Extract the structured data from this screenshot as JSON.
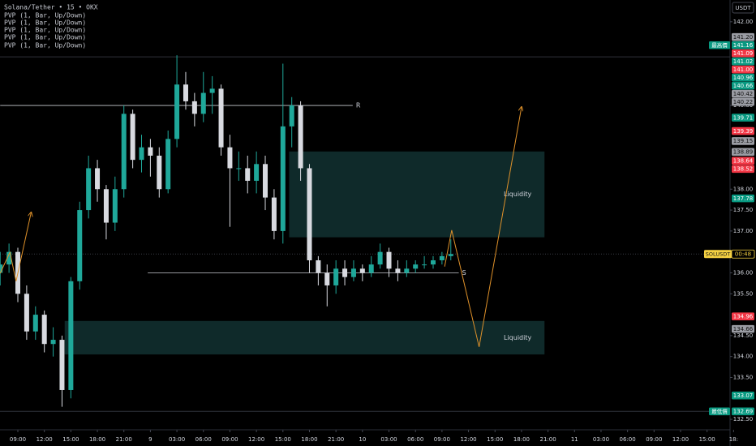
{
  "chart_data": {
    "type": "candlestick",
    "title": "Solana/Tether • 15 • OKX",
    "indicators": [
      "PVP (1, Bar, Up/Down)",
      "PVP (1, Bar, Up/Down)",
      "PVP (1, Bar, Up/Down)",
      "PVP (1, Bar, Up/Down)",
      "PVP (1, Bar, Up/Down)"
    ],
    "currency": "USDT",
    "up_color": "#1fa89a",
    "down_color": "#d8dae0",
    "x": [
      -2,
      -1,
      0,
      1,
      2,
      3,
      4,
      5,
      6,
      7,
      8,
      9,
      10,
      11,
      12,
      13,
      14,
      15,
      16,
      17,
      18,
      19,
      20,
      21,
      22,
      23,
      24,
      25,
      26,
      27,
      28,
      29,
      30,
      31,
      32,
      33,
      34,
      35,
      36,
      37,
      38,
      39,
      40,
      41,
      42,
      43,
      44,
      45,
      46,
      47,
      48,
      49
    ],
    "open": [
      136.0,
      136.2,
      136.5,
      135.5,
      134.6,
      135.0,
      134.3,
      134.4,
      133.2,
      135.8,
      137.5,
      138.5,
      138.0,
      137.2,
      138.0,
      139.8,
      138.7,
      139.0,
      138.8,
      138.0,
      139.2,
      140.5,
      140.1,
      139.8,
      140.3,
      140.4,
      139.0,
      138.5,
      138.5,
      138.2,
      138.6,
      137.8,
      137.0,
      139.5,
      140.0,
      138.5,
      136.3,
      136.0,
      135.7,
      136.1,
      135.9,
      136.1,
      136.0,
      136.2,
      136.5,
      136.1,
      136.0,
      136.1,
      136.2,
      136.2,
      136.3,
      136.4
    ],
    "high": [
      136.5,
      136.7,
      136.6,
      135.7,
      135.2,
      135.1,
      134.7,
      134.5,
      135.9,
      137.7,
      138.8,
      138.7,
      138.1,
      138.3,
      140.0,
      139.9,
      139.3,
      139.2,
      139.0,
      139.4,
      141.2,
      140.8,
      140.3,
      140.8,
      140.7,
      140.5,
      139.3,
      138.9,
      138.8,
      138.9,
      138.8,
      138.0,
      141.0,
      140.2,
      140.1,
      138.6,
      136.4,
      136.2,
      136.3,
      136.3,
      136.3,
      136.2,
      136.4,
      136.7,
      136.6,
      136.3,
      136.3,
      136.3,
      136.4,
      136.4,
      136.5,
      136.8
    ],
    "low": [
      135.7,
      136.0,
      135.3,
      134.4,
      134.4,
      134.1,
      134.0,
      132.8,
      133.0,
      135.6,
      137.3,
      137.7,
      136.8,
      137.0,
      137.8,
      138.5,
      138.4,
      138.3,
      137.8,
      137.9,
      139.0,
      139.9,
      139.5,
      139.6,
      139.8,
      138.8,
      137.1,
      138.2,
      137.9,
      137.9,
      137.5,
      136.8,
      136.7,
      139.0,
      138.2,
      136.0,
      135.7,
      135.2,
      135.5,
      135.7,
      135.8,
      135.8,
      135.9,
      136.1,
      135.9,
      135.8,
      135.9,
      136.0,
      136.1,
      136.1,
      136.2,
      136.3
    ],
    "close": [
      136.2,
      136.5,
      135.5,
      134.6,
      135.0,
      134.3,
      134.4,
      133.2,
      135.8,
      137.5,
      138.5,
      138.0,
      137.2,
      138.0,
      139.8,
      138.7,
      139.0,
      138.8,
      138.0,
      139.2,
      140.5,
      140.1,
      139.8,
      140.3,
      140.4,
      139.0,
      138.5,
      138.5,
      138.2,
      138.6,
      137.8,
      137.0,
      139.5,
      140.0,
      138.5,
      136.3,
      136.0,
      135.7,
      136.1,
      135.9,
      136.1,
      136.0,
      136.2,
      136.5,
      136.1,
      136.0,
      136.1,
      136.2,
      136.2,
      136.3,
      136.4,
      136.45
    ],
    "xlim": [
      -2.02,
      80.6
    ],
    "ylim": [
      132.25,
      142.52
    ],
    "xticks": [
      {
        "value": 0,
        "label": "09:00"
      },
      {
        "value": 3,
        "label": "12:00"
      },
      {
        "value": 6,
        "label": "15:00"
      },
      {
        "value": 9,
        "label": "18:00"
      },
      {
        "value": 12,
        "label": "21:00"
      },
      {
        "value": 15,
        "label": "9"
      },
      {
        "value": 18,
        "label": "03:00"
      },
      {
        "value": 21,
        "label": "06:00"
      },
      {
        "value": 24,
        "label": "09:00"
      },
      {
        "value": 27,
        "label": "12:00"
      },
      {
        "value": 30,
        "label": "15:00"
      },
      {
        "value": 33,
        "label": "18:00"
      },
      {
        "value": 36,
        "label": "21:00"
      },
      {
        "value": 39,
        "label": "10"
      },
      {
        "value": 42,
        "label": "03:00"
      },
      {
        "value": 45,
        "label": "06:00"
      },
      {
        "value": 48,
        "label": "09:00"
      },
      {
        "value": 51,
        "label": "12:00"
      },
      {
        "value": 54,
        "label": "15:00"
      },
      {
        "value": 57,
        "label": "18:00"
      },
      {
        "value": 60,
        "label": "21:00"
      },
      {
        "value": 63,
        "label": "11"
      },
      {
        "value": 66,
        "label": "03:00"
      },
      {
        "value": 69,
        "label": "06:00"
      },
      {
        "value": 72,
        "label": "09:00"
      },
      {
        "value": 75,
        "label": "12:00"
      },
      {
        "value": 78,
        "label": "15:00"
      },
      {
        "value": 81,
        "label": "18:"
      }
    ],
    "yticks": [
      {
        "value": 142,
        "label": "142.00"
      },
      {
        "value": 140,
        "label": "140.00"
      },
      {
        "value": 138,
        "label": "138.00"
      },
      {
        "value": 137.5,
        "label": "137.50"
      },
      {
        "value": 137,
        "label": "137.00"
      },
      {
        "value": 136,
        "label": "136.00"
      },
      {
        "value": 135.5,
        "label": "135.50"
      },
      {
        "value": 134.5,
        "label": "134.50"
      },
      {
        "value": 134,
        "label": "134.00"
      },
      {
        "value": 133.5,
        "label": "133.50"
      },
      {
        "value": 132.5,
        "label": "132.50"
      }
    ],
    "levels": [
      {
        "label": "R",
        "value": 140,
        "x": [
          -2.0,
          37.9
        ]
      },
      {
        "label": "S",
        "value": 136,
        "x": [
          14.7,
          49.9
        ]
      }
    ],
    "zones": [
      {
        "label": "Liquidity",
        "range": [
          136.85,
          138.9
        ],
        "x": [
          30.7,
          59.6
        ],
        "color": "#0f2a2a"
      },
      {
        "label": "Liquidity",
        "range": [
          134.05,
          134.85
        ],
        "x": [
          5.3,
          59.6
        ],
        "color": "#0f2a2a"
      }
    ],
    "projection_color": "#e0922a",
    "projections": [
      {
        "x": [
          -2.0,
          -0.9,
          -0.2,
          1.5
        ],
        "y": [
          135.99,
          136.49,
          135.8,
          137.44
        ]
      },
      {
        "x": [
          48.3,
          49.1,
          52.2,
          57.0
        ],
        "y": [
          136.15,
          137.02,
          134.23,
          139.96
        ]
      }
    ],
    "price_tag": {
      "symbol": "SOLUSDT",
      "countdown": "00:48",
      "value": 136.45,
      "color": "#f5d142"
    },
    "badges": [
      {
        "label": "141.20",
        "value": 141.2,
        "color": "#9a9ca3"
      },
      {
        "label": "141.16",
        "value": 141.16,
        "color": "#089981",
        "tag": "最高價"
      },
      {
        "label": "141.09",
        "value": 141.09,
        "color": "#f23645"
      },
      {
        "label": "141.02",
        "value": 141.02,
        "color": "#089981"
      },
      {
        "label": "141.00",
        "value": 141.0,
        "color": "#f23645"
      },
      {
        "label": "140.96",
        "value": 140.96,
        "color": "#089981"
      },
      {
        "label": "140.66",
        "value": 140.66,
        "color": "#089981"
      },
      {
        "label": "140.42",
        "value": 140.42,
        "color": "#9a9ca3"
      },
      {
        "label": "140.22",
        "value": 140.22,
        "color": "#9a9ca3"
      },
      {
        "label": "139.71",
        "value": 139.71,
        "color": "#089981"
      },
      {
        "label": "139.39",
        "value": 139.39,
        "color": "#f23645"
      },
      {
        "label": "139.15",
        "value": 139.15,
        "color": "#9a9ca3"
      },
      {
        "label": "138.89",
        "value": 138.89,
        "color": "#9a9ca3"
      },
      {
        "label": "138.64",
        "value": 138.64,
        "color": "#f23645"
      },
      {
        "label": "138.52",
        "value": 138.52,
        "color": "#f23645"
      },
      {
        "label": "137.78",
        "value": 137.78,
        "color": "#089981"
      },
      {
        "label": "134.96",
        "value": 134.96,
        "color": "#f23645"
      },
      {
        "label": "134.66",
        "value": 134.66,
        "color": "#9a9ca3"
      },
      {
        "label": "133.07",
        "value": 133.07,
        "color": "#089981"
      },
      {
        "label": "132.69",
        "value": 132.69,
        "color": "#089981",
        "tag": "最低價"
      }
    ]
  }
}
